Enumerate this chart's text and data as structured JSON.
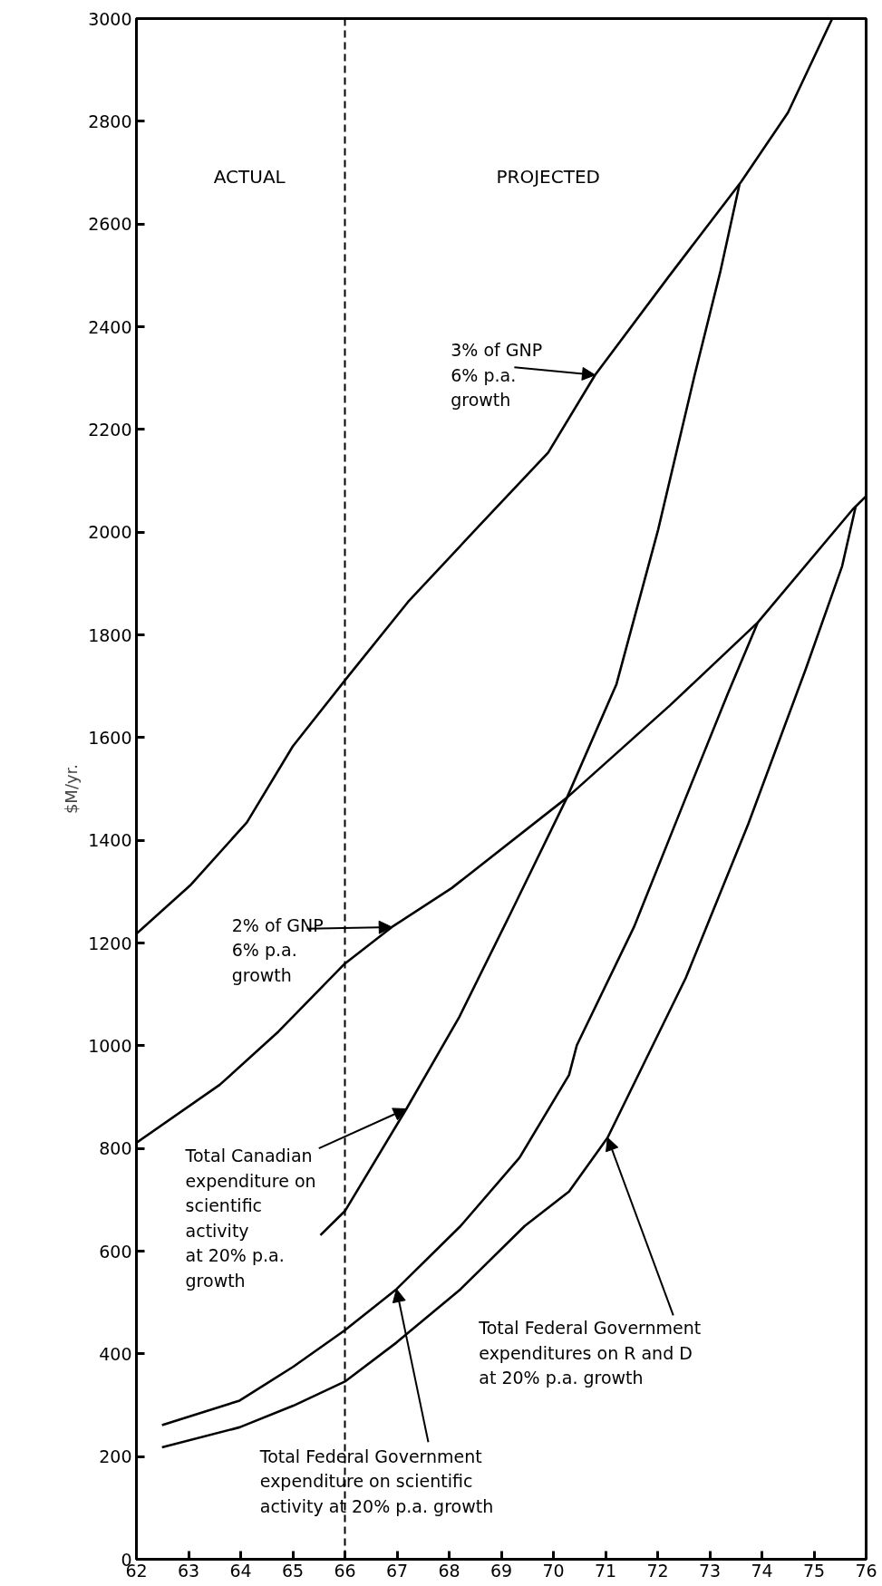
{
  "chart_data": {
    "type": "line",
    "ylabel": "$M/yr.",
    "xlim": [
      62,
      76
    ],
    "xticks": [
      62,
      63,
      64,
      65,
      66,
      67,
      68,
      69,
      70,
      71,
      72,
      73,
      74,
      75,
      76
    ],
    "ylim": [
      0,
      3000
    ],
    "yticks": [
      0,
      200,
      400,
      600,
      800,
      1000,
      1200,
      1400,
      1600,
      1800,
      2000,
      2200,
      2400,
      2600,
      2800,
      3000
    ],
    "grid": false,
    "marker": "none",
    "line_style": "solid",
    "ref_lines": [
      {
        "axis": "x",
        "value": 66,
        "line_style": "dashed",
        "color": "#000000"
      }
    ],
    "series": [
      {
        "color": "#000000",
        "x": [
          62,
          63.03,
          64.12,
          65.0,
          66.06,
          67.21,
          68.6,
          69.9,
          70.8,
          72.2,
          73.6,
          74.5,
          75.35
        ],
        "values": [
          1218,
          1312,
          1435,
          1583,
          1719,
          1864,
          2015,
          2155,
          2306,
          2496,
          2682,
          2817,
          3000
        ]
      },
      {
        "color": "#000000",
        "x": [
          62,
          63.6,
          64.73,
          66.0,
          66.9,
          68.05,
          70.26,
          72.24,
          73.92,
          75.74,
          76
        ],
        "values": [
          811,
          924,
          1028,
          1160,
          1231,
          1307,
          1483,
          1663,
          1824,
          2044,
          2070
        ]
      },
      {
        "color": "#000000",
        "x": [
          65.53,
          66.0,
          67.18,
          68.2,
          69.17,
          70.26,
          71.21,
          72.01,
          72.71,
          73.2,
          73.57
        ],
        "values": [
          631,
          678,
          877,
          1057,
          1256,
          1483,
          1704,
          2005,
          2306,
          2506,
          2677
        ]
      },
      {
        "color": "#000000",
        "x": [
          62.49,
          63.98,
          65.01,
          66.0,
          66.99,
          68.22,
          69.35,
          70.3,
          70.45,
          71.55,
          72.54,
          73.34,
          73.92
        ],
        "values": [
          261,
          309,
          375,
          446,
          526,
          649,
          782,
          943,
          1001,
          1232,
          1483,
          1684,
          1824
        ]
      },
      {
        "color": "#000000",
        "x": [
          62.49,
          63.98,
          65.01,
          66.0,
          66.99,
          68.22,
          69.45,
          70.3,
          71.04,
          72.54,
          73.74,
          74.84,
          75.54,
          75.8
        ],
        "values": [
          218,
          257,
          299,
          346,
          422,
          526,
          649,
          716,
          821,
          1132,
          1432,
          1733,
          1934,
          2050
        ]
      }
    ],
    "annotations": [
      "ACTUAL",
      "PROJECTED",
      {
        "text": "3% of GNP\n6% p.a.\ngrowth",
        "x": 70.8,
        "y": 2306
      },
      {
        "text": "2% of GNP\n6% p.a.\ngrowth",
        "x": 66.9,
        "y": 1231
      },
      {
        "text": "Total Canadian\nexpenditure on\nscientific\nactivity\nat 20% p.a.\ngrowth",
        "x": 67.18,
        "y": 877
      },
      {
        "text": "Total Federal Government\nexpenditures on R and D\nat 20% p.a. growth",
        "x": 71.04,
        "y": 821
      },
      {
        "text": "Total Federal Government\nexpenditure on scientific\nactivity at 20% p.a. growth",
        "x": 66.99,
        "y": 526
      }
    ]
  }
}
